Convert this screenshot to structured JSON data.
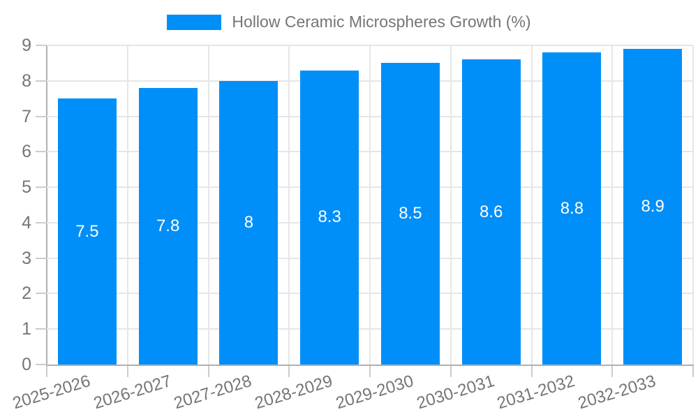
{
  "chart_data": {
    "type": "bar",
    "title": "Hollow Ceramic Microspheres Growth (%)",
    "categories": [
      "2025-2026",
      "2026-2027",
      "2027-2028",
      "2028-2029",
      "2029-2030",
      "2030-2031",
      "2031-2032",
      "2032-2033"
    ],
    "values": [
      7.5,
      7.8,
      8,
      8.3,
      8.5,
      8.6,
      8.8,
      8.9
    ],
    "data_labels": [
      "7.5",
      "7.8",
      "8",
      "8.3",
      "8.5",
      "8.6",
      "8.8",
      "8.9"
    ],
    "xlabel": "",
    "ylabel": "",
    "ylim": [
      0,
      9
    ],
    "y_ticks": [
      0,
      1,
      2,
      3,
      4,
      5,
      6,
      7,
      8,
      9
    ],
    "grid": "horizontal and vertical gridlines on",
    "legend_position": "top-center",
    "colors": {
      "bar": "#008ff8",
      "bar_value_text": "#ffffff",
      "axis_text": "#757575",
      "gridline": "#e6e6e6",
      "tick": "#cccccc",
      "axis_line": "#b0b0b0",
      "background": "#ffffff"
    }
  }
}
